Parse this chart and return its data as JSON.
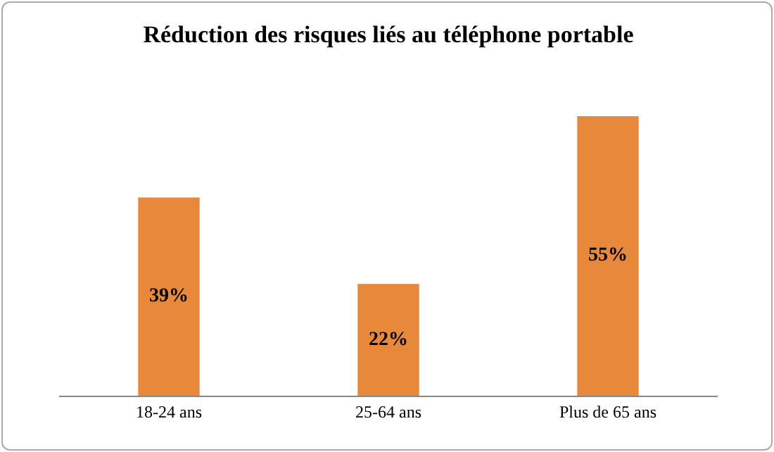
{
  "chart_data": {
    "type": "bar",
    "title": "Réduction des risques liés au téléphone portable",
    "categories": [
      "18-24 ans",
      "25-64 ans",
      "Plus de 65 ans"
    ],
    "values": [
      39,
      22,
      55
    ],
    "value_labels": [
      "39%",
      "22%",
      "55%"
    ],
    "color": "#e8883a"
  }
}
